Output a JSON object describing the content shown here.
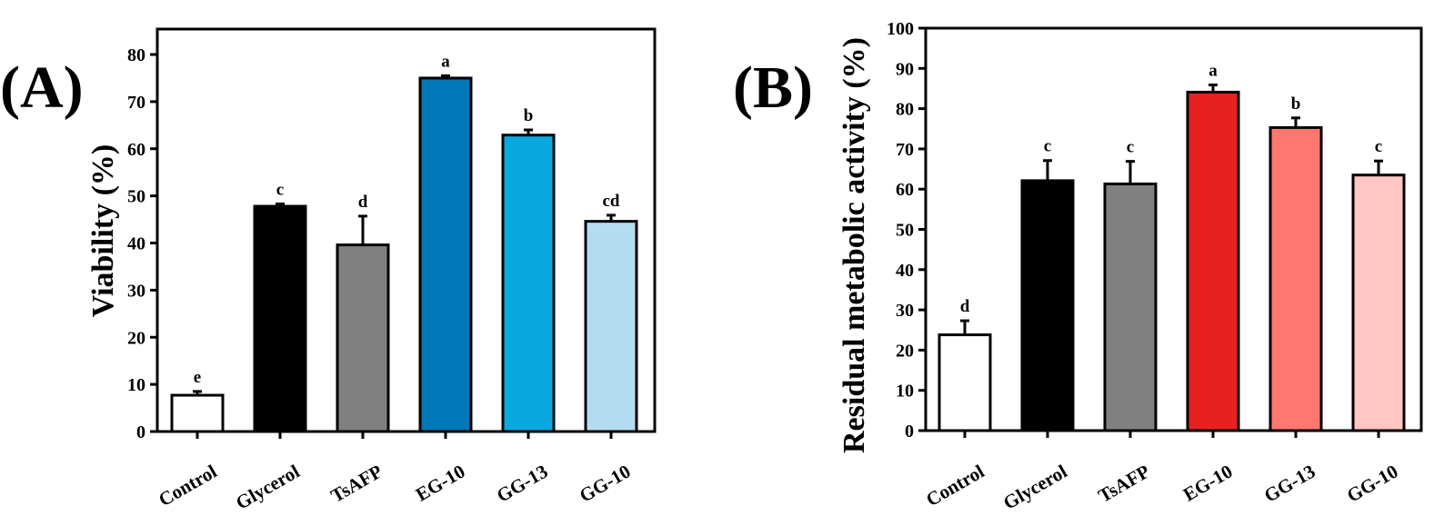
{
  "chart_data": [
    {
      "type": "bar",
      "panel_label": "(A)",
      "title": "",
      "xlabel": "",
      "ylabel": "Viability (%)",
      "ylim": [
        0,
        85
      ],
      "yticks": [
        0,
        10,
        20,
        30,
        40,
        50,
        60,
        70,
        80
      ],
      "grid": false,
      "categories": [
        "Control",
        "Glycerol",
        "TsAFP",
        "EG-10",
        "GG-13",
        "GG-10"
      ],
      "values": [
        7.7,
        47.8,
        39.6,
        75.0,
        62.9,
        44.6
      ],
      "errors": [
        0.8,
        0.5,
        6.1,
        0.5,
        1.1,
        1.3
      ],
      "significance": [
        "e",
        "c",
        "d",
        "a",
        "b",
        "cd"
      ],
      "colors": [
        "#ffffff",
        "#000000",
        "#808080",
        "#0077b6",
        "#0aa8e0",
        "#b5ddf2"
      ]
    },
    {
      "type": "bar",
      "panel_label": "(B)",
      "title": "",
      "xlabel": "",
      "ylabel": "Residual metabolic activity (%)",
      "ylim": [
        0,
        100
      ],
      "yticks": [
        0,
        10,
        20,
        30,
        40,
        50,
        60,
        70,
        80,
        90,
        100
      ],
      "grid": false,
      "categories": [
        "Control",
        "Glycerol",
        "TsAFP",
        "EG-10",
        "GG-13",
        "GG-10"
      ],
      "values": [
        23.8,
        62.1,
        61.3,
        84.1,
        75.3,
        63.5
      ],
      "errors": [
        3.5,
        5.0,
        5.6,
        1.8,
        2.4,
        3.5
      ],
      "significance": [
        "d",
        "c",
        "c",
        "a",
        "b",
        "c"
      ],
      "colors": [
        "#ffffff",
        "#000000",
        "#808080",
        "#e8201f",
        "#ff7870",
        "#ffc6c2"
      ]
    }
  ]
}
